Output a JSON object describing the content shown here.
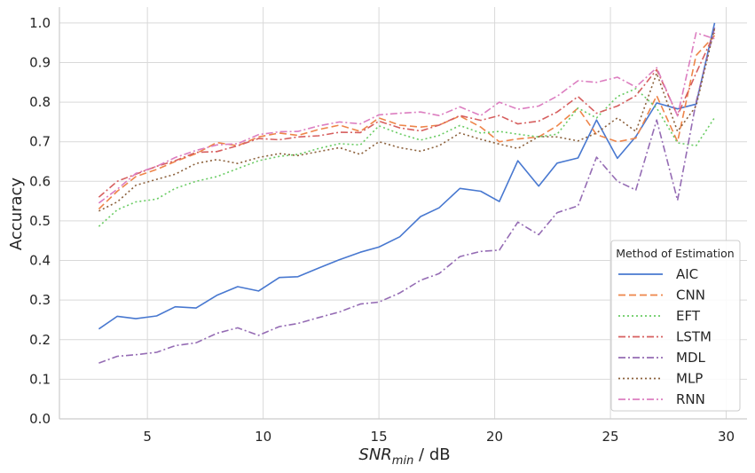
{
  "chart_data": {
    "type": "line",
    "xlabel_main": "SNR",
    "xlabel_sub": "min",
    "xlabel_suffix": " / dB",
    "ylabel": "Accuracy",
    "xlim": [
      1.2,
      30.9
    ],
    "ylim": [
      0.0,
      1.04
    ],
    "xticks": [
      5,
      10,
      15,
      20,
      25,
      30
    ],
    "yticks": [
      "0.0",
      "0.1",
      "0.2",
      "0.3",
      "0.4",
      "0.5",
      "0.6",
      "0.7",
      "0.8",
      "0.9",
      "1.0"
    ],
    "grid": true,
    "legend_placement": "bottom-right",
    "legend_title": "Method of Estimation",
    "x": [
      2.9,
      3.7,
      4.5,
      5.4,
      6.2,
      7.1,
      8.0,
      8.9,
      9.8,
      10.7,
      11.5,
      12.4,
      13.3,
      14.2,
      15.0,
      15.9,
      16.8,
      17.6,
      18.5,
      19.4,
      20.2,
      21.0,
      21.9,
      22.7,
      23.6,
      24.4,
      25.3,
      26.1,
      27.0,
      27.9,
      28.7,
      29.5
    ],
    "series": [
      {
        "name": "AIC",
        "color": "#4878d0",
        "dash": "",
        "values": [
          0.227,
          0.259,
          0.253,
          0.26,
          0.283,
          0.28,
          0.312,
          0.334,
          0.323,
          0.357,
          0.359,
          0.381,
          0.402,
          0.421,
          0.434,
          0.46,
          0.511,
          0.533,
          0.582,
          0.575,
          0.549,
          0.652,
          0.588,
          0.646,
          0.659,
          0.755,
          0.658,
          0.713,
          0.798,
          0.783,
          0.795,
          1.0
        ]
      },
      {
        "name": "CNN",
        "color": "#ee854a",
        "dash": "8,4",
        "values": [
          0.53,
          0.575,
          0.612,
          0.63,
          0.65,
          0.67,
          0.698,
          0.69,
          0.712,
          0.722,
          0.716,
          0.731,
          0.742,
          0.726,
          0.76,
          0.742,
          0.737,
          0.742,
          0.765,
          0.737,
          0.7,
          0.707,
          0.712,
          0.74,
          0.785,
          0.718,
          0.7,
          0.709,
          0.816,
          0.7,
          0.918,
          0.968
        ]
      },
      {
        "name": "EFT",
        "color": "#6acc64",
        "dash": "2,3",
        "values": [
          0.486,
          0.528,
          0.548,
          0.555,
          0.582,
          0.6,
          0.612,
          0.632,
          0.652,
          0.663,
          0.668,
          0.683,
          0.695,
          0.692,
          0.74,
          0.72,
          0.704,
          0.716,
          0.741,
          0.722,
          0.726,
          0.719,
          0.712,
          0.719,
          0.785,
          0.76,
          0.814,
          0.834,
          0.785,
          0.697,
          0.69,
          0.761
        ]
      },
      {
        "name": "LSTM",
        "color": "#d65f5f",
        "dash": "8,3,2,3",
        "values": [
          0.56,
          0.6,
          0.618,
          0.638,
          0.652,
          0.673,
          0.675,
          0.69,
          0.708,
          0.705,
          0.712,
          0.715,
          0.724,
          0.723,
          0.752,
          0.735,
          0.727,
          0.742,
          0.766,
          0.754,
          0.766,
          0.745,
          0.752,
          0.775,
          0.814,
          0.772,
          0.79,
          0.816,
          0.882,
          0.766,
          0.873,
          0.975
        ]
      },
      {
        "name": "MDL",
        "color": "#956cb4",
        "dash": "8,3,2,3",
        "values": [
          0.141,
          0.158,
          0.162,
          0.168,
          0.185,
          0.192,
          0.216,
          0.23,
          0.211,
          0.233,
          0.241,
          0.256,
          0.27,
          0.29,
          0.295,
          0.318,
          0.35,
          0.367,
          0.41,
          0.423,
          0.426,
          0.497,
          0.465,
          0.521,
          0.538,
          0.661,
          0.6,
          0.578,
          0.755,
          0.552,
          0.8,
          0.988
        ]
      },
      {
        "name": "MLP",
        "color": "#8c613c",
        "dash": "2,3",
        "values": [
          0.525,
          0.548,
          0.59,
          0.605,
          0.618,
          0.645,
          0.655,
          0.645,
          0.66,
          0.67,
          0.665,
          0.675,
          0.685,
          0.668,
          0.7,
          0.685,
          0.676,
          0.69,
          0.722,
          0.706,
          0.694,
          0.683,
          0.713,
          0.712,
          0.702,
          0.722,
          0.76,
          0.726,
          0.873,
          0.726,
          0.79,
          0.987
        ]
      },
      {
        "name": "RNN",
        "color": "#dc7ec0",
        "dash": "8,3,2,3",
        "values": [
          0.545,
          0.58,
          0.62,
          0.638,
          0.66,
          0.678,
          0.692,
          0.695,
          0.718,
          0.725,
          0.726,
          0.74,
          0.75,
          0.745,
          0.768,
          0.772,
          0.775,
          0.766,
          0.788,
          0.766,
          0.8,
          0.782,
          0.79,
          0.815,
          0.854,
          0.85,
          0.863,
          0.838,
          0.887,
          0.765,
          0.975,
          0.96
        ]
      }
    ]
  }
}
